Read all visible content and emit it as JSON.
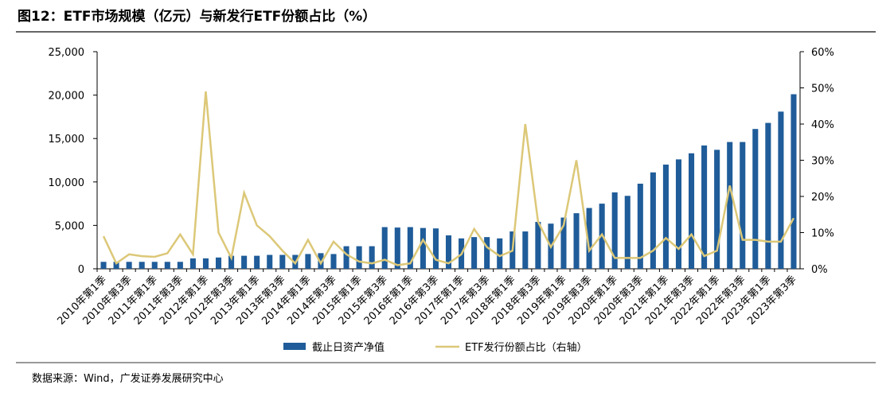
{
  "chart_data": {
    "type": "bar-line",
    "title": "图12：ETF市场规模（亿元）与新发行ETF份额占比（%）",
    "source": "数据来源：Wind，广发证券发展研究中心",
    "categories": [
      "2010年第1季",
      null,
      "2010年第3季",
      null,
      "2011年第1季",
      null,
      "2011年第3季",
      null,
      "2012年第1季",
      null,
      "2012年第3季",
      null,
      "2013年第1季",
      null,
      "2013年第3季",
      null,
      "2014年第1季",
      null,
      "2014年第3季",
      null,
      "2015年第1季",
      null,
      "2015年第3季",
      null,
      "2016年第1季",
      null,
      "2016年第3季",
      null,
      "2017年第1季",
      null,
      "2017年第3季",
      null,
      "2018年第1季",
      null,
      "2018年第3季",
      null,
      "2019年第1季",
      null,
      "2019年第3季",
      null,
      "2020年第1季",
      null,
      "2020年第3季",
      null,
      "2021年第1季",
      null,
      "2021年第3季",
      null,
      "2022年第1季",
      null,
      "2022年第3季",
      null,
      "2023年第1季",
      null,
      "2023年第3季"
    ],
    "series": [
      {
        "name": "截止日资产净值",
        "color": "#1f5c99",
        "values": [
          800,
          800,
          800,
          800,
          800,
          800,
          800,
          1200,
          1200,
          1300,
          1500,
          1500,
          1500,
          1600,
          1600,
          1600,
          1700,
          1800,
          1700,
          2600,
          2600,
          2600,
          4800,
          4750,
          4800,
          4700,
          4650,
          3850,
          3500,
          3650,
          3650,
          3500,
          4300,
          4300,
          5400,
          5200,
          5900,
          6400,
          7000,
          7500,
          8800,
          8400,
          9800,
          11100,
          12000,
          12600,
          13300,
          14200,
          13700,
          14600,
          14600,
          16100,
          16800,
          18100,
          20100
        ]
      },
      {
        "name": "ETF发行份额占比（右轴）",
        "color": "#dcc878",
        "axis": "y2",
        "values": [
          9,
          1.5,
          4,
          3.5,
          3.3,
          4.3,
          9.5,
          4,
          49,
          10,
          3,
          21,
          12,
          9,
          5,
          1.5,
          8,
          1.5,
          7.5,
          4,
          2,
          1.5,
          2.5,
          1,
          1.5,
          8,
          2.5,
          1.5,
          4,
          11,
          6,
          3.5,
          5,
          40,
          13,
          6,
          12,
          30,
          5,
          9.5,
          3,
          3,
          3,
          5,
          8.5,
          5.5,
          9.5,
          3.5,
          5,
          23,
          8,
          8,
          7.5,
          7.5,
          14
        ]
      }
    ],
    "ylim": [
      0,
      25000
    ],
    "yticks": [
      0,
      {
        "value": 5000,
        "label": "5,000"
      },
      {
        "value": 10000,
        "label": "10,000"
      },
      {
        "value": 15000,
        "label": "15,000"
      },
      {
        "value": 20000,
        "label": "20,000"
      },
      {
        "value": 25000,
        "label": "25,000"
      }
    ],
    "y2lim": [
      0,
      60
    ],
    "y2ticks": [
      {
        "value": 0,
        "label": "0%"
      },
      {
        "value": 10,
        "label": "10%"
      },
      {
        "value": 20,
        "label": "20%"
      },
      {
        "value": 30,
        "label": "30%"
      },
      {
        "value": 40,
        "label": "40%"
      },
      {
        "value": 50,
        "label": "50%"
      },
      {
        "value": 60,
        "label": "60%"
      }
    ]
  }
}
